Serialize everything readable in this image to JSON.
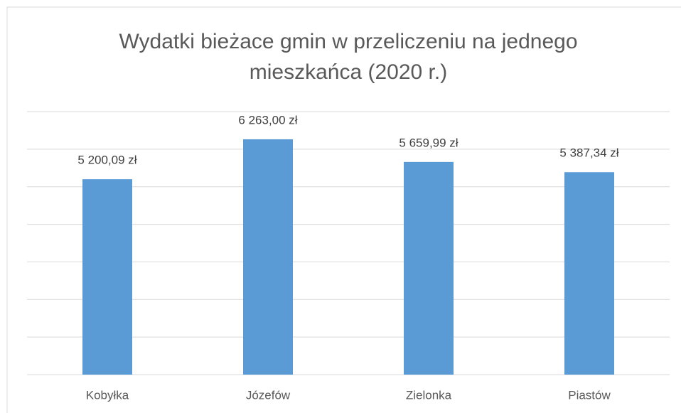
{
  "chart_data": {
    "type": "bar",
    "title": [
      "Wydatki bieżace gmin w przeliczeniu  na jednego",
      "mieszkańca (2020 r.)"
    ],
    "categories": [
      "Kobyłka",
      "Józefów",
      "Zielonka",
      "Piastów"
    ],
    "values": [
      5200.09,
      6263.0,
      5659.99,
      5387.34
    ],
    "value_labels": [
      "5 200,09 zł",
      "6 263,00 zł",
      "5 659,99 zł",
      "5 387,34 zł"
    ],
    "color": "#5b9bd5",
    "ylim": [
      0,
      7000
    ],
    "yticks": [
      0,
      1000,
      2000,
      3000,
      4000,
      5000,
      6000,
      7000
    ],
    "grid": true
  }
}
